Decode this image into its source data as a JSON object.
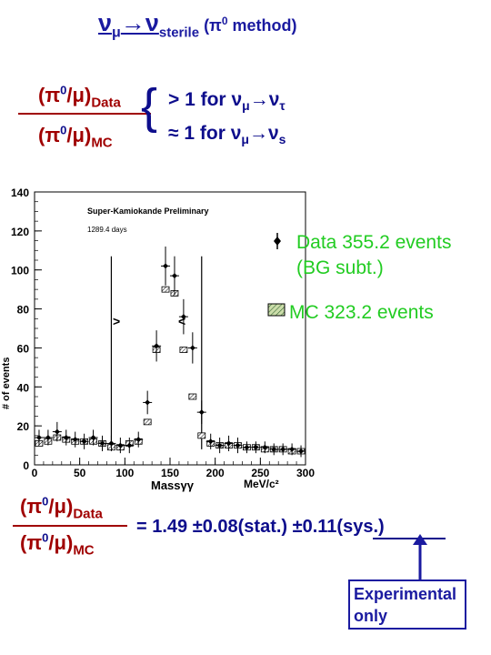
{
  "title": {
    "main": "νμ→νsterile",
    "method": " (π0 method)"
  },
  "ratio_top": {
    "numerator": "(π0/μ)",
    "numerator_sub": "Data",
    "denominator": "(π0/μ)",
    "denominator_sub": "MC",
    "case1": "> 1 for νμ→ντ",
    "case2": "≈ 1 for νμ→νs"
  },
  "legend": {
    "data_label_1": "Data 355.2 events",
    "data_label_2": "(BG subt.)",
    "mc_label": "MC 323.2 events"
  },
  "result": {
    "numerator": "(π0/μ)",
    "numerator_sub": "Data",
    "denominator": "(π0/μ)",
    "denominator_sub": "MC",
    "equation": "= 1.49 ±0.08(stat.) ±0.11(sys.)"
  },
  "note_box": {
    "text": "Experimental only"
  },
  "colors": {
    "navy": "#0d0d8c",
    "darkred": "#a00000",
    "green": "#22cc22",
    "mc_hatch": "#99cc99"
  },
  "chart_data": {
    "type": "scatter",
    "title": "Super-Kamiokande Preliminary",
    "subtitle": "1289.4 days",
    "xlabel": "Massγγ",
    "xunit": "MeV/c²",
    "ylabel": "# of events",
    "xlim": [
      0,
      300
    ],
    "ylim": [
      0,
      140
    ],
    "x_ticks": [
      0,
      50,
      100,
      150,
      200,
      250,
      300
    ],
    "y_ticks": [
      0,
      20,
      40,
      60,
      80,
      100,
      120,
      140
    ],
    "cut_window": [
      85,
      185
    ],
    "series": [
      {
        "name": "Data",
        "x": [
          5,
          15,
          25,
          35,
          45,
          55,
          65,
          75,
          85,
          95,
          105,
          115,
          125,
          135,
          145,
          155,
          165,
          175,
          185,
          195,
          205,
          215,
          225,
          235,
          245,
          255,
          265,
          275,
          285,
          295
        ],
        "y": [
          14,
          14,
          17,
          14,
          13,
          12,
          14,
          11,
          11,
          10,
          10,
          13,
          32,
          61,
          102,
          97,
          76,
          60,
          27,
          12,
          10,
          11,
          10,
          9,
          9,
          9,
          8,
          8,
          8,
          7
        ],
        "yerr": [
          4,
          4,
          5,
          4,
          4,
          4,
          4,
          4,
          4,
          4,
          4,
          4,
          6,
          8,
          10,
          10,
          9,
          8,
          6,
          4,
          4,
          4,
          4,
          3,
          3,
          3,
          3,
          3,
          3,
          3
        ]
      },
      {
        "name": "MC",
        "x": [
          5,
          15,
          25,
          35,
          45,
          55,
          65,
          75,
          85,
          95,
          105,
          115,
          125,
          135,
          145,
          155,
          165,
          175,
          185,
          195,
          205,
          215,
          225,
          235,
          245,
          255,
          265,
          275,
          285,
          295
        ],
        "y": [
          11,
          12,
          14,
          13,
          12,
          12,
          12,
          11,
          9,
          9,
          11,
          12,
          22,
          59,
          90,
          88,
          59,
          35,
          15,
          11,
          10,
          10,
          10,
          9,
          9,
          8,
          8,
          8,
          7,
          7
        ]
      }
    ]
  }
}
